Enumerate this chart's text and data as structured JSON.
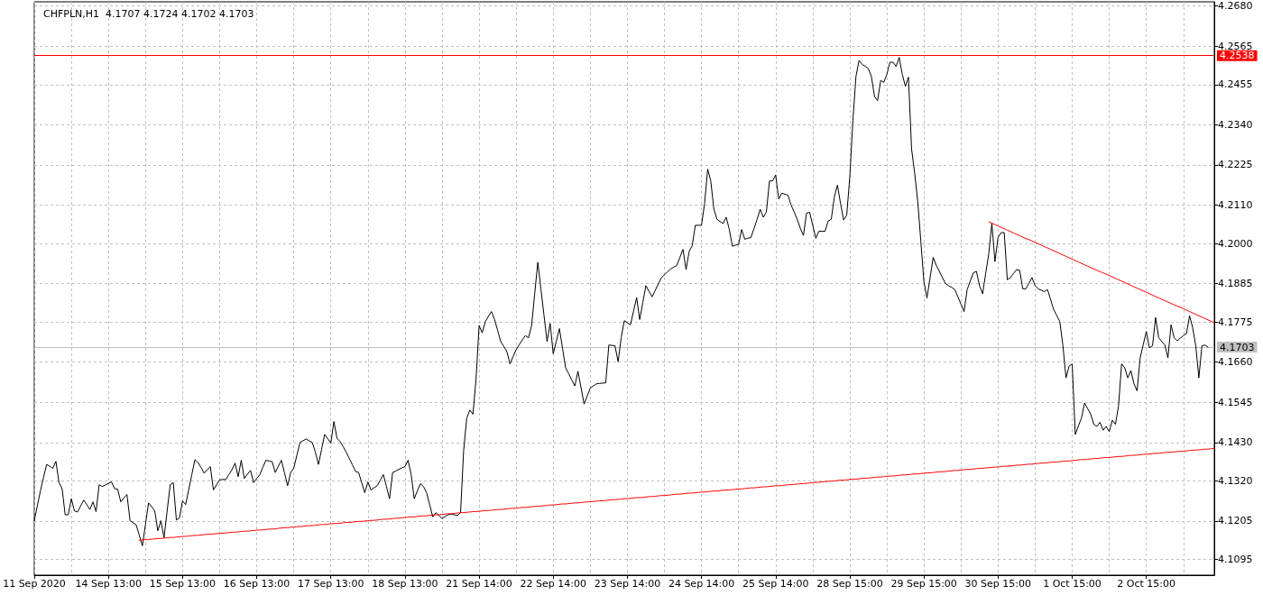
{
  "chart_data": {
    "type": "line",
    "title": "CHFPLN,H1  4.1707 4.1724 4.1702 4.1703",
    "categories": [
      "11 Sep 2020",
      null,
      null,
      null,
      null,
      null,
      null,
      null,
      null,
      null,
      null,
      null,
      null,
      null,
      null,
      null,
      null,
      null,
      null,
      null,
      null,
      null,
      null,
      null,
      "14 Sep 13:00",
      null,
      null,
      null,
      null,
      null,
      null,
      null,
      null,
      null,
      null,
      null,
      null,
      null,
      null,
      null,
      null,
      null,
      null,
      null,
      null,
      null,
      null,
      null,
      "15 Sep 13:00",
      null,
      null,
      null,
      null,
      null,
      null,
      null,
      null,
      null,
      null,
      null,
      null,
      null,
      null,
      null,
      null,
      null,
      null,
      null,
      null,
      null,
      null,
      null,
      "16 Sep 13:00",
      null,
      null,
      null,
      null,
      null,
      null,
      null,
      null,
      null,
      null,
      null,
      null,
      null,
      null,
      null,
      null,
      null,
      null,
      null,
      null,
      null,
      null,
      null,
      "17 Sep 13:00",
      null,
      null,
      null,
      null,
      null,
      null,
      null,
      null,
      null,
      null,
      null,
      null,
      null,
      null,
      null,
      null,
      null,
      null,
      null,
      null,
      null,
      null,
      null,
      "18 Sep 13:00",
      null,
      null,
      null,
      null,
      null,
      null,
      null,
      null,
      null,
      null,
      null,
      null,
      null,
      null,
      null,
      null,
      null,
      null,
      null,
      null,
      null,
      null,
      null,
      "21 Sep 14:00",
      null,
      null,
      null,
      null,
      null,
      null,
      null,
      null,
      null,
      null,
      null,
      null,
      null,
      null,
      null,
      null,
      null,
      null,
      null,
      null,
      null,
      null,
      null,
      "22 Sep 14:00",
      null,
      null,
      null,
      null,
      null,
      null,
      null,
      null,
      null,
      null,
      null,
      null,
      null,
      null,
      null,
      null,
      null,
      null,
      null,
      null,
      null,
      null,
      null,
      "23 Sep 14:00",
      null,
      null,
      null,
      null,
      null,
      null,
      null,
      null,
      null,
      null,
      null,
      null,
      null,
      null,
      null,
      null,
      null,
      null,
      null,
      null,
      null,
      null,
      null,
      "24 Sep 14:00",
      null,
      null,
      null,
      null,
      null,
      null,
      null,
      null,
      null,
      null,
      null,
      null,
      null,
      null,
      null,
      null,
      null,
      null,
      null,
      null,
      null,
      null,
      null,
      "25 Sep 14:00",
      null,
      null,
      null,
      null,
      null,
      null,
      null,
      null,
      null,
      null,
      null,
      null,
      null,
      null,
      null,
      null,
      null,
      null,
      null,
      null,
      null,
      null,
      null,
      "28 Sep 15:00",
      null,
      null,
      null,
      null,
      null,
      null,
      null,
      null,
      null,
      null,
      null,
      null,
      null,
      null,
      null,
      null,
      null,
      null,
      null,
      null,
      null,
      null,
      null,
      "29 Sep 15:00",
      null,
      null,
      null,
      null,
      null,
      null,
      null,
      null,
      null,
      null,
      null,
      null,
      null,
      null,
      null,
      null,
      null,
      null,
      null,
      null,
      null,
      null,
      null,
      "30 Sep 15:00",
      null,
      null,
      null,
      null,
      null,
      null,
      null,
      null,
      null,
      null,
      null,
      null,
      null,
      null,
      null,
      null,
      null,
      null,
      null,
      null,
      null,
      null,
      null,
      "1 Oct 15:00",
      null,
      null,
      null,
      null,
      null,
      null,
      null,
      null,
      null,
      null,
      null,
      null,
      null,
      null,
      null,
      null,
      null,
      null,
      null,
      null,
      null,
      null,
      null,
      "2 Oct 15:00",
      null,
      null,
      null,
      null,
      null,
      null,
      null,
      null,
      null,
      null,
      null,
      null,
      null,
      null,
      null,
      null,
      null,
      null,
      null,
      null,
      null,
      null
    ],
    "ylim": [
      4.105,
      4.2692
    ],
    "yticks": [
      {
        "value": 4.268,
        "label": "4.2680"
      },
      4.2565,
      4.2455,
      {
        "value": 4.234,
        "label": "4.2340"
      },
      4.2225,
      {
        "value": 4.211,
        "label": "4.2110"
      },
      {
        "value": 4.2,
        "label": "4.2000"
      },
      4.1885,
      4.1775,
      {
        "value": 4.166,
        "label": "4.1660"
      },
      4.1545,
      {
        "value": 4.143,
        "label": "4.1430"
      },
      {
        "value": 4.132,
        "label": "4.1320"
      },
      4.1205,
      4.1095
    ],
    "grid": true,
    "marker": "none",
    "ref_lines": [
      {
        "axis": "y",
        "value": 4.2538,
        "label": "4.2538",
        "color": "#ff0000"
      },
      {
        "axis": "y",
        "value": 4.1703,
        "label": "4.1703",
        "color": "#c0c0c0"
      }
    ],
    "series": [
      {
        "color": "#000000",
        "values": [
          4.1206,
          4.1249,
          4.1292,
          4.133,
          4.1367,
          4.1362,
          4.1356,
          4.1376,
          4.1315,
          4.1298,
          4.1223,
          4.1223,
          4.1269,
          4.1234,
          4.1231,
          4.1248,
          4.1265,
          4.1252,
          4.1238,
          4.126,
          4.1232,
          4.1309,
          4.1304,
          4.1308,
          4.1313,
          4.1317,
          4.1298,
          4.1296,
          4.126,
          4.1271,
          4.1281,
          4.1206,
          4.12,
          4.1194,
          4.1164,
          4.1134,
          4.1196,
          4.1257,
          4.1246,
          4.1234,
          4.1177,
          4.1206,
          4.1157,
          4.1233,
          4.1309,
          4.1315,
          4.1208,
          4.1214,
          4.1263,
          4.1252,
          4.1295,
          4.1338,
          4.1381,
          4.1373,
          4.1358,
          4.1342,
          4.1352,
          4.1361,
          4.1294,
          4.1309,
          4.1323,
          4.1324,
          4.1324,
          4.1338,
          4.1352,
          4.1371,
          4.1332,
          4.1379,
          4.1327,
          4.1339,
          4.135,
          4.1315,
          4.1327,
          4.1338,
          4.1359,
          4.1379,
          4.1377,
          4.1375,
          4.1344,
          4.1362,
          4.1379,
          4.1343,
          4.1306,
          4.1344,
          4.1356,
          4.1393,
          4.143,
          4.1435,
          4.144,
          4.1435,
          4.143,
          4.1402,
          4.1367,
          4.141,
          4.1453,
          4.1441,
          4.1428,
          4.149,
          4.1442,
          4.1433,
          4.1418,
          4.1402,
          4.1384,
          4.1366,
          4.1347,
          4.1344,
          4.1315,
          4.1286,
          4.1317,
          4.1294,
          4.13,
          4.1306,
          4.1322,
          4.1338,
          4.1304,
          4.1269,
          4.1344,
          4.1348,
          4.1353,
          4.1357,
          4.1361,
          4.1379,
          4.1338,
          4.1269,
          4.1291,
          4.1312,
          4.1304,
          4.1286,
          4.1252,
          4.1217,
          4.1229,
          4.1221,
          4.1212,
          4.1218,
          4.1223,
          4.1225,
          4.1223,
          4.1221,
          4.1229,
          4.1407,
          4.15,
          4.1523,
          4.1511,
          4.161,
          4.1765,
          4.1744,
          4.1776,
          4.1791,
          4.1805,
          4.1782,
          4.1751,
          4.1719,
          4.1705,
          4.169,
          4.1655,
          4.1676,
          4.1696,
          4.171,
          4.1724,
          4.1736,
          4.173,
          4.1765,
          4.1856,
          4.1946,
          4.187,
          4.1795,
          4.1719,
          4.1771,
          4.1684,
          4.172,
          4.1756,
          4.17,
          4.1644,
          4.1627,
          4.1609,
          4.1592,
          4.1634,
          4.1587,
          4.154,
          4.1563,
          4.1586,
          4.1592,
          4.1598,
          4.1599,
          4.16,
          4.1601,
          4.1709,
          4.1708,
          4.1707,
          4.1661,
          4.173,
          4.1779,
          4.1773,
          4.1767,
          4.1806,
          4.1845,
          4.1782,
          4.1831,
          4.1879,
          4.1863,
          4.1847,
          4.1865,
          4.1884,
          4.1902,
          4.191,
          4.1919,
          4.1927,
          4.1932,
          4.1937,
          4.196,
          4.1983,
          4.1925,
          4.1977,
          4.1994,
          4.2052,
          4.2052,
          4.2052,
          4.2115,
          4.2213,
          4.2179,
          4.2098,
          4.2069,
          4.2063,
          4.2057,
          4.2075,
          4.204,
          4.1992,
          4.1995,
          4.1997,
          4.204,
          4.2012,
          4.2015,
          4.2017,
          4.2043,
          4.2069,
          4.2098,
          4.2075,
          4.209,
          4.2179,
          4.2179,
          4.2196,
          4.2127,
          4.2144,
          4.2141,
          4.2138,
          4.211,
          4.209,
          4.2069,
          4.2043,
          4.2023,
          4.2087,
          4.2089,
          4.2052,
          4.2015,
          4.2035,
          4.2035,
          4.2035,
          4.2064,
          4.2069,
          4.2133,
          4.2167,
          4.2115,
          4.2067,
          4.2081,
          4.219,
          4.2352,
          4.2478,
          4.2524,
          4.2513,
          4.2507,
          4.2501,
          4.2478,
          4.2421,
          4.2409,
          4.2467,
          4.2461,
          4.2484,
          4.2519,
          4.2519,
          4.2507,
          4.2533,
          4.2484,
          4.245,
          4.2476,
          4.2271,
          4.2202,
          4.2121,
          4.2006,
          4.1891,
          4.1844,
          4.1902,
          4.196,
          4.1937,
          4.192,
          4.1902,
          4.1885,
          4.1879,
          4.1874,
          4.1868,
          4.1847,
          4.1826,
          4.1805,
          4.1868,
          4.1892,
          4.1916,
          4.192,
          4.1879,
          4.1856,
          4.1914,
          4.1971,
          4.2058,
          4.1948,
          4.2017,
          4.2031,
          4.2031,
          4.1896,
          4.1902,
          4.1914,
          4.1925,
          4.1923,
          4.187,
          4.187,
          4.1886,
          4.1902,
          4.1879,
          4.187,
          4.1866,
          4.1862,
          4.1868,
          4.184,
          4.1811,
          4.1794,
          4.1776,
          4.1707,
          4.1615,
          4.1649,
          4.1655,
          4.1453,
          4.1477,
          4.15,
          4.1543,
          4.1527,
          4.1511,
          4.1482,
          4.1476,
          4.1488,
          4.1465,
          4.1476,
          4.1461,
          4.1494,
          4.1482,
          4.1534,
          4.1655,
          4.1644,
          4.1615,
          4.1636,
          4.1598,
          4.1578,
          4.1672,
          4.171,
          4.1748,
          4.1701,
          4.1707,
          4.1788,
          4.173,
          4.1719,
          4.1709,
          4.1672,
          4.1767,
          4.173,
          4.1721,
          4.1729,
          4.1736,
          4.1742,
          4.1793,
          4.1759,
          4.1707,
          4.1615,
          4.1707,
          4.1709,
          4.1703,
          null,
          null
        ]
      },
      {
        "color": "#ff0000",
        "values": [
          null,
          null,
          null,
          null,
          null,
          null,
          null,
          null,
          null,
          null,
          null,
          null,
          null,
          null,
          null,
          null,
          null,
          null,
          null,
          null,
          null,
          null,
          null,
          null,
          null,
          null,
          null,
          null,
          null,
          null,
          null,
          null,
          null,
          null,
          4.115,
          4.1151,
          4.1152,
          4.1152,
          4.1153,
          4.1154,
          4.1155,
          4.1155,
          4.1156,
          4.1157,
          4.1158,
          4.1158,
          4.1159,
          4.116,
          4.1161,
          4.1161,
          4.1162,
          4.1163,
          4.1164,
          4.1164,
          4.1165,
          4.1166,
          4.1167,
          4.1167,
          4.1168,
          4.1169,
          4.117,
          4.117,
          4.1171,
          4.1172,
          4.1173,
          4.1173,
          4.1174,
          4.1175,
          4.1176,
          4.1176,
          4.1177,
          4.1178,
          4.1179,
          4.1179,
          4.118,
          4.1181,
          4.1182,
          4.1182,
          4.1183,
          4.1184,
          4.1185,
          4.1186,
          4.1186,
          4.1187,
          4.1188,
          4.1189,
          4.1189,
          4.119,
          4.1191,
          4.1192,
          4.1192,
          4.1193,
          4.1194,
          4.1195,
          4.1195,
          4.1196,
          4.1197,
          4.1198,
          4.1198,
          4.1199,
          4.12,
          4.1201,
          4.1201,
          4.1202,
          4.1203,
          4.1204,
          4.1204,
          4.1205,
          4.1206,
          4.1207,
          4.1207,
          4.1208,
          4.1209,
          4.121,
          4.121,
          4.1211,
          4.1212,
          4.1213,
          4.1213,
          4.1214,
          4.1215,
          4.1216,
          4.1217,
          4.1217,
          4.1218,
          4.1219,
          4.122,
          4.122,
          4.1221,
          4.1222,
          4.1223,
          4.1223,
          4.1224,
          4.1225,
          4.1226,
          4.1226,
          4.1227,
          4.1228,
          4.1229,
          4.1229,
          4.123,
          4.1231,
          4.1232,
          4.1232,
          4.1233,
          4.1234,
          4.1235,
          4.1235,
          4.1236,
          4.1237,
          4.1238,
          4.1238,
          4.1239,
          4.124,
          4.1241,
          4.1241,
          4.1242,
          4.1243,
          4.1244,
          4.1244,
          4.1245,
          4.1246,
          4.1247,
          4.1247,
          4.1248,
          4.1249,
          4.125,
          4.1251,
          4.1251,
          4.1252,
          4.1253,
          4.1254,
          4.1254,
          4.1255,
          4.1256,
          4.1257,
          4.1257,
          4.1258,
          4.1259,
          4.126,
          4.126,
          4.1261,
          4.1262,
          4.1263,
          4.1263,
          4.1264,
          4.1265,
          4.1266,
          4.1266,
          4.1267,
          4.1268,
          4.1269,
          4.1269,
          4.127,
          4.1271,
          4.1272,
          4.1272,
          4.1273,
          4.1274,
          4.1275,
          4.1275,
          4.1276,
          4.1277,
          4.1278,
          4.1278,
          4.1279,
          4.128,
          4.1281,
          4.1282,
          4.1282,
          4.1283,
          4.1284,
          4.1285,
          4.1285,
          4.1286,
          4.1287,
          4.1288,
          4.1288,
          4.1289,
          4.129,
          4.1291,
          4.1291,
          4.1292,
          4.1293,
          4.1294,
          4.1294,
          4.1295,
          4.1296,
          4.1297,
          4.1297,
          4.1298,
          4.1299,
          4.13,
          4.13,
          4.1301,
          4.1302,
          4.1303,
          4.1303,
          4.1304,
          4.1305,
          4.1306,
          4.1306,
          4.1307,
          4.1308,
          4.1309,
          4.1309,
          4.131,
          4.1311,
          4.1312,
          4.1312,
          4.1313,
          4.1314,
          4.1315,
          4.1316,
          4.1316,
          4.1317,
          4.1318,
          4.1319,
          4.1319,
          4.132,
          4.1321,
          4.1322,
          4.1322,
          4.1323,
          4.1324,
          4.1325,
          4.1325,
          4.1326,
          4.1327,
          4.1328,
          4.1328,
          4.1329,
          4.133,
          4.1331,
          4.1331,
          4.1332,
          4.1333,
          4.1334,
          4.1334,
          4.1335,
          4.1336,
          4.1337,
          4.1337,
          4.1338,
          4.1339,
          4.134,
          4.134,
          4.1341,
          4.1342,
          4.1343,
          4.1343,
          4.1344,
          4.1345,
          4.1346,
          4.1346,
          4.1347,
          4.1348,
          4.1349,
          4.135,
          4.135,
          4.1351,
          4.1352,
          4.1353,
          4.1353,
          4.1354,
          4.1355,
          4.1356,
          4.1356,
          4.1357,
          4.1358,
          4.1359,
          4.1359,
          4.136,
          4.1361,
          4.1362,
          4.1362,
          4.1363,
          4.1364,
          4.1365,
          4.1365,
          4.1366,
          4.1367,
          4.1368,
          4.1368,
          4.1369,
          4.137,
          4.1371,
          4.1371,
          4.1372,
          4.1373,
          4.1374,
          4.1374,
          4.1375,
          4.1376,
          4.1377,
          4.1377,
          4.1378,
          4.1379,
          4.138,
          4.1381,
          4.1381,
          4.1382,
          4.1383,
          4.1384,
          4.1384,
          4.1385,
          4.1386,
          4.1387,
          4.1387,
          4.1388,
          4.1389,
          4.139,
          4.139,
          4.1391,
          4.1392,
          4.1393,
          4.1393,
          4.1394,
          4.1395,
          4.1396,
          4.1396,
          4.1397,
          4.1398,
          4.1399,
          4.1399,
          4.14,
          4.1401,
          4.1402,
          4.1402,
          4.1403,
          4.1404,
          4.1405,
          4.1405,
          4.1406,
          4.1407,
          4.1408,
          4.1408,
          4.1409,
          4.141,
          4.1411,
          4.1411,
          4.1412,
          4.1413
        ]
      },
      {
        "color": "#ff0000",
        "values": [
          null,
          null,
          null,
          null,
          null,
          null,
          null,
          null,
          null,
          null,
          null,
          null,
          null,
          null,
          null,
          null,
          null,
          null,
          null,
          null,
          null,
          null,
          null,
          null,
          null,
          null,
          null,
          null,
          null,
          null,
          null,
          null,
          null,
          null,
          null,
          null,
          null,
          null,
          null,
          null,
          null,
          null,
          null,
          null,
          null,
          null,
          null,
          null,
          null,
          null,
          null,
          null,
          null,
          null,
          null,
          null,
          null,
          null,
          null,
          null,
          null,
          null,
          null,
          null,
          null,
          null,
          null,
          null,
          null,
          null,
          null,
          null,
          null,
          null,
          null,
          null,
          null,
          null,
          null,
          null,
          null,
          null,
          null,
          null,
          null,
          null,
          null,
          null,
          null,
          null,
          null,
          null,
          null,
          null,
          null,
          null,
          null,
          null,
          null,
          null,
          null,
          null,
          null,
          null,
          null,
          null,
          null,
          null,
          null,
          null,
          null,
          null,
          null,
          null,
          null,
          null,
          null,
          null,
          null,
          null,
          null,
          null,
          null,
          null,
          null,
          null,
          null,
          null,
          null,
          null,
          null,
          null,
          null,
          null,
          null,
          null,
          null,
          null,
          null,
          null,
          null,
          null,
          null,
          null,
          null,
          null,
          null,
          null,
          null,
          null,
          null,
          null,
          null,
          null,
          null,
          null,
          null,
          null,
          null,
          null,
          null,
          null,
          null,
          null,
          null,
          null,
          null,
          null,
          null,
          null,
          null,
          null,
          null,
          null,
          null,
          null,
          null,
          null,
          null,
          null,
          null,
          null,
          null,
          null,
          null,
          null,
          null,
          null,
          null,
          null,
          null,
          null,
          null,
          null,
          null,
          null,
          null,
          null,
          null,
          null,
          null,
          null,
          null,
          null,
          null,
          null,
          null,
          null,
          null,
          null,
          null,
          null,
          null,
          null,
          null,
          null,
          null,
          null,
          null,
          null,
          null,
          null,
          null,
          null,
          null,
          null,
          null,
          null,
          null,
          null,
          null,
          null,
          null,
          null,
          null,
          null,
          null,
          null,
          null,
          null,
          null,
          null,
          null,
          null,
          null,
          null,
          null,
          null,
          null,
          null,
          null,
          null,
          null,
          null,
          null,
          null,
          null,
          null,
          null,
          null,
          null,
          null,
          null,
          null,
          null,
          null,
          null,
          null,
          null,
          null,
          null,
          null,
          null,
          null,
          null,
          null,
          null,
          null,
          null,
          null,
          null,
          null,
          null,
          null,
          null,
          null,
          null,
          null,
          null,
          null,
          null,
          null,
          null,
          null,
          null,
          null,
          null,
          null,
          null,
          null,
          null,
          null,
          null,
          null,
          null,
          null,
          null,
          null,
          null,
          4.2062,
          4.2058,
          4.2054,
          4.205,
          4.2046,
          4.2042,
          4.2038,
          4.2034,
          4.203,
          4.2026,
          4.2022,
          4.2018,
          4.2014,
          4.2011,
          4.2007,
          4.2003,
          4.1999,
          4.1995,
          4.1991,
          4.1987,
          4.1983,
          4.1979,
          4.1975,
          4.1971,
          4.1967,
          4.1963,
          4.1959,
          4.1955,
          4.1951,
          4.1947,
          4.1943,
          4.1939,
          4.1935,
          4.1931,
          4.1927,
          4.1923,
          4.1919,
          4.1916,
          4.1912,
          4.1908,
          4.1904,
          4.19,
          4.1896,
          4.1892,
          4.1888,
          4.1884,
          4.188,
          4.1876,
          4.1872,
          4.1868,
          4.1864,
          4.186,
          4.1856,
          4.1852,
          4.1848,
          4.1844,
          4.184,
          4.1836,
          4.1832,
          4.1828,
          4.1824,
          4.1821,
          4.1817,
          4.1813,
          4.1809,
          4.1805,
          4.1801,
          4.1797,
          4.1793,
          4.1789,
          4.1785,
          4.1781,
          4.1777,
          4.1773
        ]
      }
    ]
  }
}
